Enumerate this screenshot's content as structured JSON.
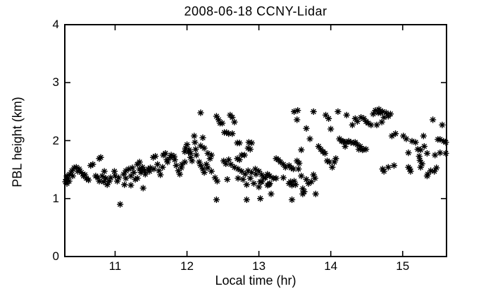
{
  "chart": {
    "title": "2008-06-18 CCNY-Lidar",
    "xlabel": "Local time (hr)",
    "ylabel": "PBL height (km)"
  },
  "chart_data": {
    "type": "scatter",
    "title": "2008-06-18 CCNY-Lidar",
    "xlabel": "Local time (hr)",
    "ylabel": "PBL height (km)",
    "xlim": [
      10.3,
      15.61
    ],
    "ylim": [
      0,
      4
    ],
    "xticks": [
      "11",
      "12",
      "13",
      "14",
      "15"
    ],
    "xtick_values": [
      11,
      12,
      13,
      14,
      15
    ],
    "yticks": [
      "0",
      "1",
      "2",
      "3",
      "4"
    ],
    "ytick_values": [
      0,
      1,
      2,
      3,
      4
    ],
    "grid": false,
    "legend": null,
    "marker": "asterisk",
    "marker_color": "#000000",
    "axis_color": "#000000",
    "background_color": "#ffffff",
    "series_name": "PBL height",
    "points": [
      [
        10.31,
        1.29
      ],
      [
        10.32,
        1.33
      ],
      [
        10.33,
        1.39
      ],
      [
        10.33,
        1.26
      ],
      [
        10.34,
        1.35
      ],
      [
        10.36,
        1.3
      ],
      [
        10.37,
        1.42
      ],
      [
        10.4,
        1.48
      ],
      [
        10.41,
        1.39
      ],
      [
        10.43,
        1.53
      ],
      [
        10.46,
        1.54
      ],
      [
        10.48,
        1.47
      ],
      [
        10.5,
        1.51
      ],
      [
        10.53,
        1.45
      ],
      [
        10.56,
        1.39
      ],
      [
        10.58,
        1.41
      ],
      [
        10.6,
        1.35
      ],
      [
        10.63,
        1.32
      ],
      [
        10.66,
        1.57
      ],
      [
        10.69,
        1.59
      ],
      [
        10.73,
        1.39
      ],
      [
        10.76,
        1.36
      ],
      [
        10.78,
        1.69
      ],
      [
        10.78,
        1.3
      ],
      [
        10.8,
        1.71
      ],
      [
        10.82,
        1.39
      ],
      [
        10.84,
        1.29
      ],
      [
        10.85,
        1.47
      ],
      [
        10.87,
        1.35
      ],
      [
        10.89,
        1.24
      ],
      [
        10.92,
        1.3
      ],
      [
        10.94,
        1.36
      ],
      [
        10.99,
        1.47
      ],
      [
        11.0,
        1.39
      ],
      [
        11.03,
        1.3
      ],
      [
        11.05,
        1.36
      ],
      [
        11.07,
        0.9
      ],
      [
        11.12,
        1.42
      ],
      [
        11.13,
        1.24
      ],
      [
        11.15,
        1.35
      ],
      [
        11.15,
        1.48
      ],
      [
        11.19,
        1.51
      ],
      [
        11.22,
        1.39
      ],
      [
        11.22,
        1.23
      ],
      [
        11.24,
        1.53
      ],
      [
        11.26,
        1.45
      ],
      [
        11.28,
        1.33
      ],
      [
        11.31,
        1.59
      ],
      [
        11.31,
        1.35
      ],
      [
        11.34,
        1.63
      ],
      [
        11.34,
        1.51
      ],
      [
        11.36,
        1.45
      ],
      [
        11.37,
        1.48
      ],
      [
        11.38,
        1.54
      ],
      [
        11.39,
        1.18
      ],
      [
        11.41,
        1.48
      ],
      [
        11.42,
        1.42
      ],
      [
        11.46,
        1.51
      ],
      [
        11.48,
        1.47
      ],
      [
        11.49,
        1.53
      ],
      [
        11.53,
        1.71
      ],
      [
        11.54,
        1.51
      ],
      [
        11.56,
        1.73
      ],
      [
        11.59,
        1.59
      ],
      [
        11.61,
        1.48
      ],
      [
        11.63,
        1.41
      ],
      [
        11.66,
        1.54
      ],
      [
        11.67,
        1.75
      ],
      [
        11.7,
        1.78
      ],
      [
        11.72,
        1.67
      ],
      [
        11.73,
        1.63
      ],
      [
        11.77,
        1.71
      ],
      [
        11.78,
        1.75
      ],
      [
        11.82,
        1.73
      ],
      [
        11.83,
        1.67
      ],
      [
        11.85,
        1.57
      ],
      [
        11.88,
        1.48
      ],
      [
        11.9,
        1.42
      ],
      [
        11.92,
        1.53
      ],
      [
        11.93,
        1.59
      ],
      [
        11.97,
        1.63
      ],
      [
        11.97,
        1.81
      ],
      [
        11.98,
        1.87
      ],
      [
        12.0,
        1.93
      ],
      [
        12.02,
        1.81
      ],
      [
        12.03,
        1.84
      ],
      [
        12.05,
        1.71
      ],
      [
        12.05,
        1.78
      ],
      [
        12.07,
        1.65
      ],
      [
        12.1,
        2.08
      ],
      [
        12.11,
        1.97
      ],
      [
        12.12,
        1.85
      ],
      [
        12.13,
        1.75
      ],
      [
        12.17,
        1.63
      ],
      [
        12.19,
        2.48
      ],
      [
        12.19,
        1.57
      ],
      [
        12.19,
        1.91
      ],
      [
        12.22,
        2.05
      ],
      [
        12.22,
        1.51
      ],
      [
        12.24,
        1.45
      ],
      [
        12.24,
        1.87
      ],
      [
        12.27,
        1.59
      ],
      [
        12.29,
        1.53
      ],
      [
        12.29,
        1.78
      ],
      [
        12.32,
        1.69
      ],
      [
        12.34,
        1.47
      ],
      [
        12.34,
        1.75
      ],
      [
        12.39,
        1.36
      ],
      [
        12.41,
        2.42
      ],
      [
        12.41,
        0.98
      ],
      [
        12.42,
        1.3
      ],
      [
        12.44,
        2.36
      ],
      [
        12.46,
        2.3
      ],
      [
        12.49,
        2.3
      ],
      [
        12.51,
        1.65
      ],
      [
        12.52,
        2.14
      ],
      [
        12.54,
        1.6
      ],
      [
        12.55,
        2.14
      ],
      [
        12.56,
        1.33
      ],
      [
        12.58,
        2.12
      ],
      [
        12.58,
        1.67
      ],
      [
        12.6,
        2.44
      ],
      [
        12.61,
        1.59
      ],
      [
        12.63,
        2.4
      ],
      [
        12.63,
        2.12
      ],
      [
        12.66,
        2.32
      ],
      [
        12.66,
        1.54
      ],
      [
        12.7,
        1.96
      ],
      [
        12.7,
        1.69
      ],
      [
        12.71,
        1.51
      ],
      [
        12.71,
        1.35
      ],
      [
        12.73,
        1.67
      ],
      [
        12.73,
        1.96
      ],
      [
        12.76,
        1.75
      ],
      [
        12.76,
        1.47
      ],
      [
        12.78,
        1.33
      ],
      [
        12.8,
        1.75
      ],
      [
        12.81,
        1.42
      ],
      [
        12.83,
        1.24
      ],
      [
        12.83,
        0.98
      ],
      [
        12.85,
        1.87
      ],
      [
        12.85,
        1.48
      ],
      [
        12.86,
        1.97
      ],
      [
        12.88,
        1.35
      ],
      [
        12.88,
        1.85
      ],
      [
        12.9,
        1.96
      ],
      [
        12.9,
        1.45
      ],
      [
        12.93,
        1.26
      ],
      [
        12.95,
        1.51
      ],
      [
        12.96,
        1.42
      ],
      [
        13.0,
        1.47
      ],
      [
        13.0,
        1.2
      ],
      [
        13.02,
        1.29
      ],
      [
        13.02,
        1.0
      ],
      [
        13.04,
        1.41
      ],
      [
        13.04,
        1.29
      ],
      [
        13.07,
        1.36
      ],
      [
        13.09,
        1.36
      ],
      [
        13.12,
        1.42
      ],
      [
        13.12,
        1.23
      ],
      [
        13.14,
        1.24
      ],
      [
        13.15,
        1.39
      ],
      [
        13.15,
        1.26
      ],
      [
        13.17,
        1.08
      ],
      [
        13.2,
        1.35
      ],
      [
        13.24,
        1.69
      ],
      [
        13.24,
        1.35
      ],
      [
        13.27,
        1.67
      ],
      [
        13.3,
        1.63
      ],
      [
        13.34,
        1.59
      ],
      [
        13.34,
        1.36
      ],
      [
        13.37,
        1.54
      ],
      [
        13.42,
        1.57
      ],
      [
        13.42,
        1.26
      ],
      [
        13.44,
        1.29
      ],
      [
        13.45,
        1.53
      ],
      [
        13.46,
        1.23
      ],
      [
        13.46,
        0.98
      ],
      [
        13.48,
        1.51
      ],
      [
        13.49,
        2.5
      ],
      [
        13.49,
        1.3
      ],
      [
        13.51,
        1.24
      ],
      [
        13.53,
        2.36
      ],
      [
        13.53,
        1.65
      ],
      [
        13.54,
        2.52
      ],
      [
        13.55,
        1.51
      ],
      [
        13.56,
        1.61
      ],
      [
        13.59,
        1.84
      ],
      [
        13.59,
        1.39
      ],
      [
        13.61,
        1.17
      ],
      [
        13.61,
        1.08
      ],
      [
        13.63,
        1.12
      ],
      [
        13.66,
        2.21
      ],
      [
        13.66,
        1.33
      ],
      [
        13.69,
        1.26
      ],
      [
        13.71,
        2.03
      ],
      [
        13.73,
        1.29
      ],
      [
        13.76,
        2.5
      ],
      [
        13.76,
        1.41
      ],
      [
        13.78,
        1.35
      ],
      [
        13.79,
        1.08
      ],
      [
        13.83,
        1.9
      ],
      [
        13.86,
        1.85
      ],
      [
        13.89,
        1.81
      ],
      [
        13.92,
        1.78
      ],
      [
        13.93,
        2.44
      ],
      [
        13.95,
        1.65
      ],
      [
        13.97,
        2.38
      ],
      [
        13.98,
        1.63
      ],
      [
        14.0,
        2.2
      ],
      [
        14.02,
        1.54
      ],
      [
        14.05,
        1.63
      ],
      [
        14.07,
        1.69
      ],
      [
        14.1,
        2.5
      ],
      [
        14.12,
        2.03
      ],
      [
        14.15,
        1.99
      ],
      [
        14.17,
        1.99
      ],
      [
        14.2,
        1.97
      ],
      [
        14.2,
        1.9
      ],
      [
        14.22,
        2.44
      ],
      [
        14.22,
        1.97
      ],
      [
        14.25,
        1.99
      ],
      [
        14.28,
        1.97
      ],
      [
        14.3,
        2.27
      ],
      [
        14.32,
        1.96
      ],
      [
        14.34,
        2.38
      ],
      [
        14.34,
        1.97
      ],
      [
        14.37,
        2.33
      ],
      [
        14.37,
        1.93
      ],
      [
        14.39,
        1.85
      ],
      [
        14.41,
        1.9
      ],
      [
        14.42,
        2.4
      ],
      [
        14.44,
        1.84
      ],
      [
        14.46,
        2.38
      ],
      [
        14.46,
        1.85
      ],
      [
        14.49,
        2.33
      ],
      [
        14.49,
        1.85
      ],
      [
        14.52,
        2.3
      ],
      [
        14.56,
        2.27
      ],
      [
        14.59,
        2.46
      ],
      [
        14.62,
        2.52
      ],
      [
        14.64,
        2.27
      ],
      [
        14.66,
        2.48
      ],
      [
        14.67,
        2.54
      ],
      [
        14.69,
        2.48
      ],
      [
        14.71,
        2.32
      ],
      [
        14.72,
        2.5
      ],
      [
        14.72,
        1.51
      ],
      [
        14.74,
        2.4
      ],
      [
        14.74,
        1.47
      ],
      [
        14.77,
        2.48
      ],
      [
        14.8,
        2.42
      ],
      [
        14.8,
        1.54
      ],
      [
        14.83,
        2.46
      ],
      [
        14.85,
        2.08
      ],
      [
        14.88,
        1.57
      ],
      [
        14.9,
        2.12
      ],
      [
        15.01,
        2.08
      ],
      [
        15.05,
        2.03
      ],
      [
        15.08,
        1.79
      ],
      [
        15.08,
        1.54
      ],
      [
        15.1,
        1.51
      ],
      [
        15.11,
        1.47
      ],
      [
        15.13,
        1.99
      ],
      [
        15.18,
        1.97
      ],
      [
        15.21,
        1.85
      ],
      [
        15.23,
        1.73
      ],
      [
        15.24,
        1.66
      ],
      [
        15.25,
        1.84
      ],
      [
        15.25,
        1.54
      ],
      [
        15.27,
        1.6
      ],
      [
        15.29,
        2.08
      ],
      [
        15.3,
        1.9
      ],
      [
        15.34,
        1.78
      ],
      [
        15.34,
        1.39
      ],
      [
        15.35,
        1.42
      ],
      [
        15.39,
        1.48
      ],
      [
        15.42,
        2.36
      ],
      [
        15.44,
        1.47
      ],
      [
        15.45,
        1.75
      ],
      [
        15.47,
        1.53
      ],
      [
        15.49,
        2.02
      ],
      [
        15.52,
        2.02
      ],
      [
        15.52,
        1.79
      ],
      [
        15.55,
        2.27
      ],
      [
        15.57,
        1.99
      ],
      [
        15.6,
        1.97
      ],
      [
        15.6,
        1.78
      ]
    ]
  }
}
